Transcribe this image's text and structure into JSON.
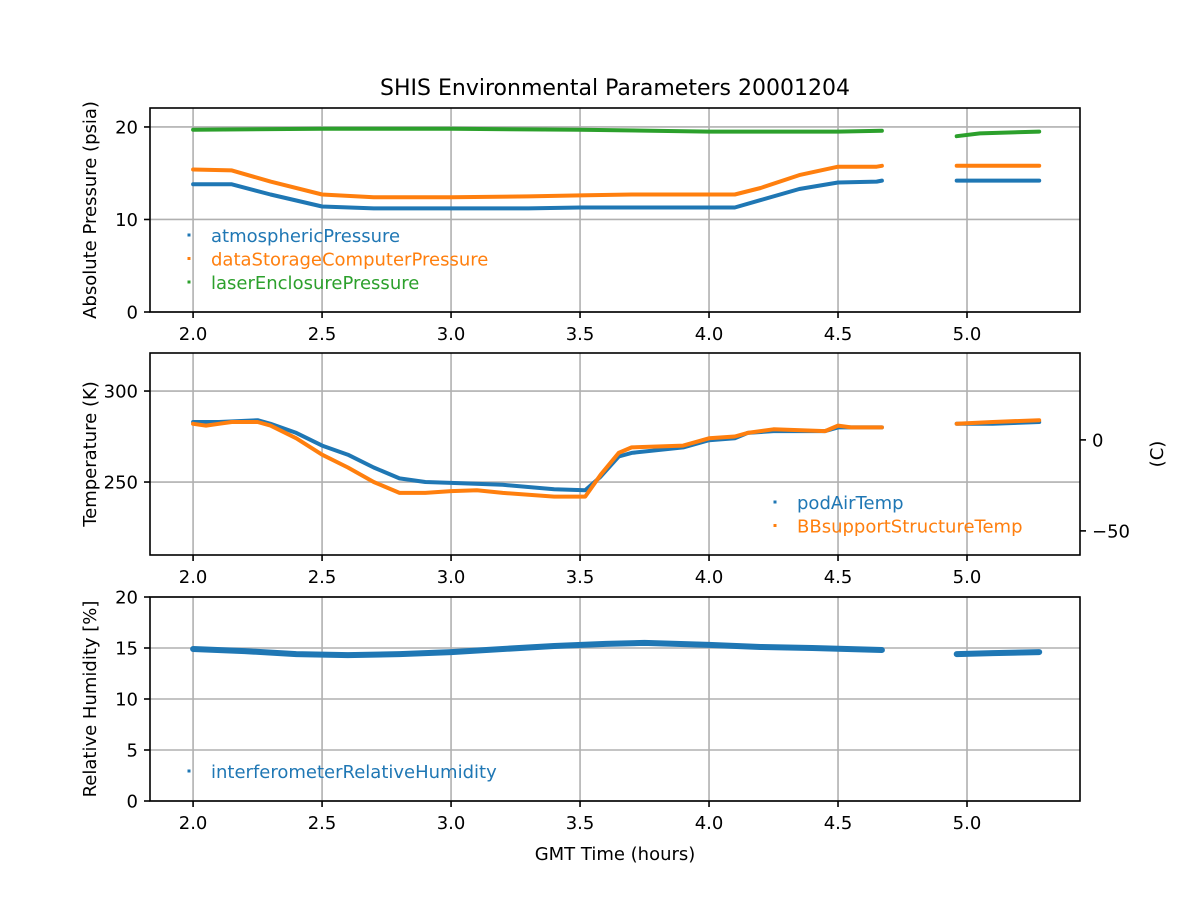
{
  "chart_data": {
    "type": "line",
    "title": "SHIS Environmental Parameters 20001204",
    "xlabel": "GMT Time (hours)",
    "xlim": [
      1.833,
      5.438
    ],
    "xticks": [
      2.0,
      2.5,
      3.0,
      3.5,
      4.0,
      4.5,
      5.0
    ],
    "xtick_labels": [
      "2.0",
      "2.5",
      "3.0",
      "3.5",
      "4.0",
      "4.5",
      "5.0"
    ],
    "grid": true,
    "panels": [
      {
        "id": "pressure",
        "ylabel": "Absolute Pressure (psia)",
        "ylim": [
          0,
          22.05
        ],
        "yticks": [
          0,
          10,
          20
        ],
        "ytick_labels": [
          "0",
          "10",
          "20"
        ],
        "legend_position": "lower-left",
        "series": [
          {
            "name": "atmosphericPressure",
            "color": "#1f77b4",
            "segments": [
              [
                [
                  2.0,
                  13.8
                ],
                [
                  2.15,
                  13.8
                ],
                [
                  2.3,
                  12.7
                ],
                [
                  2.5,
                  11.4
                ],
                [
                  2.7,
                  11.2
                ],
                [
                  3.0,
                  11.2
                ],
                [
                  3.3,
                  11.2
                ],
                [
                  3.5,
                  11.3
                ],
                [
                  4.1,
                  11.3
                ],
                [
                  4.2,
                  12.1
                ],
                [
                  4.35,
                  13.3
                ],
                [
                  4.5,
                  14.0
                ],
                [
                  4.65,
                  14.1
                ],
                [
                  4.67,
                  14.2
                ]
              ],
              [
                [
                  4.96,
                  14.2
                ],
                [
                  5.1,
                  14.2
                ],
                [
                  5.28,
                  14.2
                ]
              ]
            ]
          },
          {
            "name": "dataStorageComputerPressure",
            "color": "#ff7f0e",
            "segments": [
              [
                [
                  2.0,
                  15.4
                ],
                [
                  2.15,
                  15.3
                ],
                [
                  2.3,
                  14.1
                ],
                [
                  2.5,
                  12.7
                ],
                [
                  2.7,
                  12.4
                ],
                [
                  3.0,
                  12.4
                ],
                [
                  3.3,
                  12.5
                ],
                [
                  3.5,
                  12.6
                ],
                [
                  3.7,
                  12.7
                ],
                [
                  4.1,
                  12.7
                ],
                [
                  4.2,
                  13.4
                ],
                [
                  4.35,
                  14.8
                ],
                [
                  4.5,
                  15.7
                ],
                [
                  4.65,
                  15.7
                ],
                [
                  4.67,
                  15.8
                ]
              ],
              [
                [
                  4.96,
                  15.8
                ],
                [
                  5.1,
                  15.8
                ],
                [
                  5.28,
                  15.8
                ]
              ]
            ]
          },
          {
            "name": "laserEnclosurePressure",
            "color": "#2ca02c",
            "segments": [
              [
                [
                  2.0,
                  19.7
                ],
                [
                  2.5,
                  19.8
                ],
                [
                  3.0,
                  19.8
                ],
                [
                  3.5,
                  19.7
                ],
                [
                  4.0,
                  19.5
                ],
                [
                  4.5,
                  19.5
                ],
                [
                  4.67,
                  19.6
                ]
              ],
              [
                [
                  4.96,
                  19.0
                ],
                [
                  5.05,
                  19.3
                ],
                [
                  5.28,
                  19.5
                ]
              ]
            ]
          }
        ]
      },
      {
        "id": "temperature",
        "ylabel": "Temperature (K)",
        "ylim": [
          209.9,
          320.9
        ],
        "yticks": [
          250,
          300
        ],
        "ytick_labels": [
          "250",
          "300"
        ],
        "secondary_y": {
          "label": "(C)",
          "offset": -273.15,
          "ticks": [
            0,
            -50
          ],
          "tick_labels": [
            "0",
            "−50"
          ]
        },
        "legend_position": "lower-right",
        "series": [
          {
            "name": "podAirTemp",
            "color": "#1f77b4",
            "segments": [
              [
                [
                  2.0,
                  283
                ],
                [
                  2.1,
                  283
                ],
                [
                  2.25,
                  284
                ],
                [
                  2.3,
                  282
                ],
                [
                  2.4,
                  277
                ],
                [
                  2.5,
                  270
                ],
                [
                  2.6,
                  265
                ],
                [
                  2.7,
                  258
                ],
                [
                  2.8,
                  252
                ],
                [
                  2.9,
                  250
                ],
                [
                  3.0,
                  249.5
                ],
                [
                  3.2,
                  248.5
                ],
                [
                  3.4,
                  246
                ],
                [
                  3.52,
                  245.5
                ],
                [
                  3.58,
                  253
                ],
                [
                  3.65,
                  264
                ],
                [
                  3.7,
                  266
                ],
                [
                  3.9,
                  269
                ],
                [
                  4.0,
                  273
                ],
                [
                  4.1,
                  274
                ],
                [
                  4.15,
                  277
                ],
                [
                  4.25,
                  278
                ],
                [
                  4.45,
                  278
                ],
                [
                  4.5,
                  280
                ],
                [
                  4.55,
                  280
                ],
                [
                  4.67,
                  280
                ]
              ],
              [
                [
                  4.96,
                  282
                ],
                [
                  5.1,
                  282
                ],
                [
                  5.28,
                  283
                ]
              ]
            ]
          },
          {
            "name": "BBsupportStructureTemp",
            "color": "#ff7f0e",
            "segments": [
              [
                [
                  2.0,
                  282
                ],
                [
                  2.05,
                  281
                ],
                [
                  2.1,
                  282
                ],
                [
                  2.15,
                  283
                ],
                [
                  2.25,
                  283
                ],
                [
                  2.3,
                  281
                ],
                [
                  2.4,
                  274
                ],
                [
                  2.5,
                  265
                ],
                [
                  2.6,
                  258
                ],
                [
                  2.7,
                  250
                ],
                [
                  2.8,
                  244
                ],
                [
                  2.9,
                  244
                ],
                [
                  3.0,
                  245
                ],
                [
                  3.1,
                  245.5
                ],
                [
                  3.2,
                  244
                ],
                [
                  3.4,
                  242
                ],
                [
                  3.52,
                  242
                ],
                [
                  3.58,
                  254
                ],
                [
                  3.65,
                  266
                ],
                [
                  3.7,
                  269
                ],
                [
                  3.9,
                  270
                ],
                [
                  4.0,
                  274
                ],
                [
                  4.1,
                  275
                ],
                [
                  4.15,
                  277
                ],
                [
                  4.25,
                  279
                ],
                [
                  4.45,
                  278
                ],
                [
                  4.5,
                  281
                ],
                [
                  4.55,
                  280
                ],
                [
                  4.67,
                  280
                ]
              ],
              [
                [
                  4.96,
                  282
                ],
                [
                  5.1,
                  283
                ],
                [
                  5.28,
                  284
                ]
              ]
            ]
          }
        ]
      },
      {
        "id": "humidity",
        "ylabel": "Relative Humidity [%]",
        "ylim": [
          0,
          20
        ],
        "yticks": [
          0,
          5,
          10,
          15,
          20
        ],
        "ytick_labels": [
          "0",
          "5",
          "10",
          "15",
          "20"
        ],
        "legend_position": "lower-left",
        "series": [
          {
            "name": "interferometerRelativeHumidity",
            "color": "#1f77b4",
            "segments": [
              [
                [
                  2.0,
                  14.9
                ],
                [
                  2.2,
                  14.7
                ],
                [
                  2.4,
                  14.4
                ],
                [
                  2.6,
                  14.3
                ],
                [
                  2.8,
                  14.4
                ],
                [
                  3.0,
                  14.6
                ],
                [
                  3.2,
                  14.9
                ],
                [
                  3.4,
                  15.2
                ],
                [
                  3.6,
                  15.4
                ],
                [
                  3.75,
                  15.5
                ],
                [
                  4.0,
                  15.3
                ],
                [
                  4.2,
                  15.1
                ],
                [
                  4.4,
                  15.0
                ],
                [
                  4.67,
                  14.8
                ]
              ],
              [
                [
                  4.96,
                  14.4
                ],
                [
                  5.1,
                  14.5
                ],
                [
                  5.28,
                  14.6
                ]
              ]
            ]
          }
        ]
      }
    ]
  }
}
